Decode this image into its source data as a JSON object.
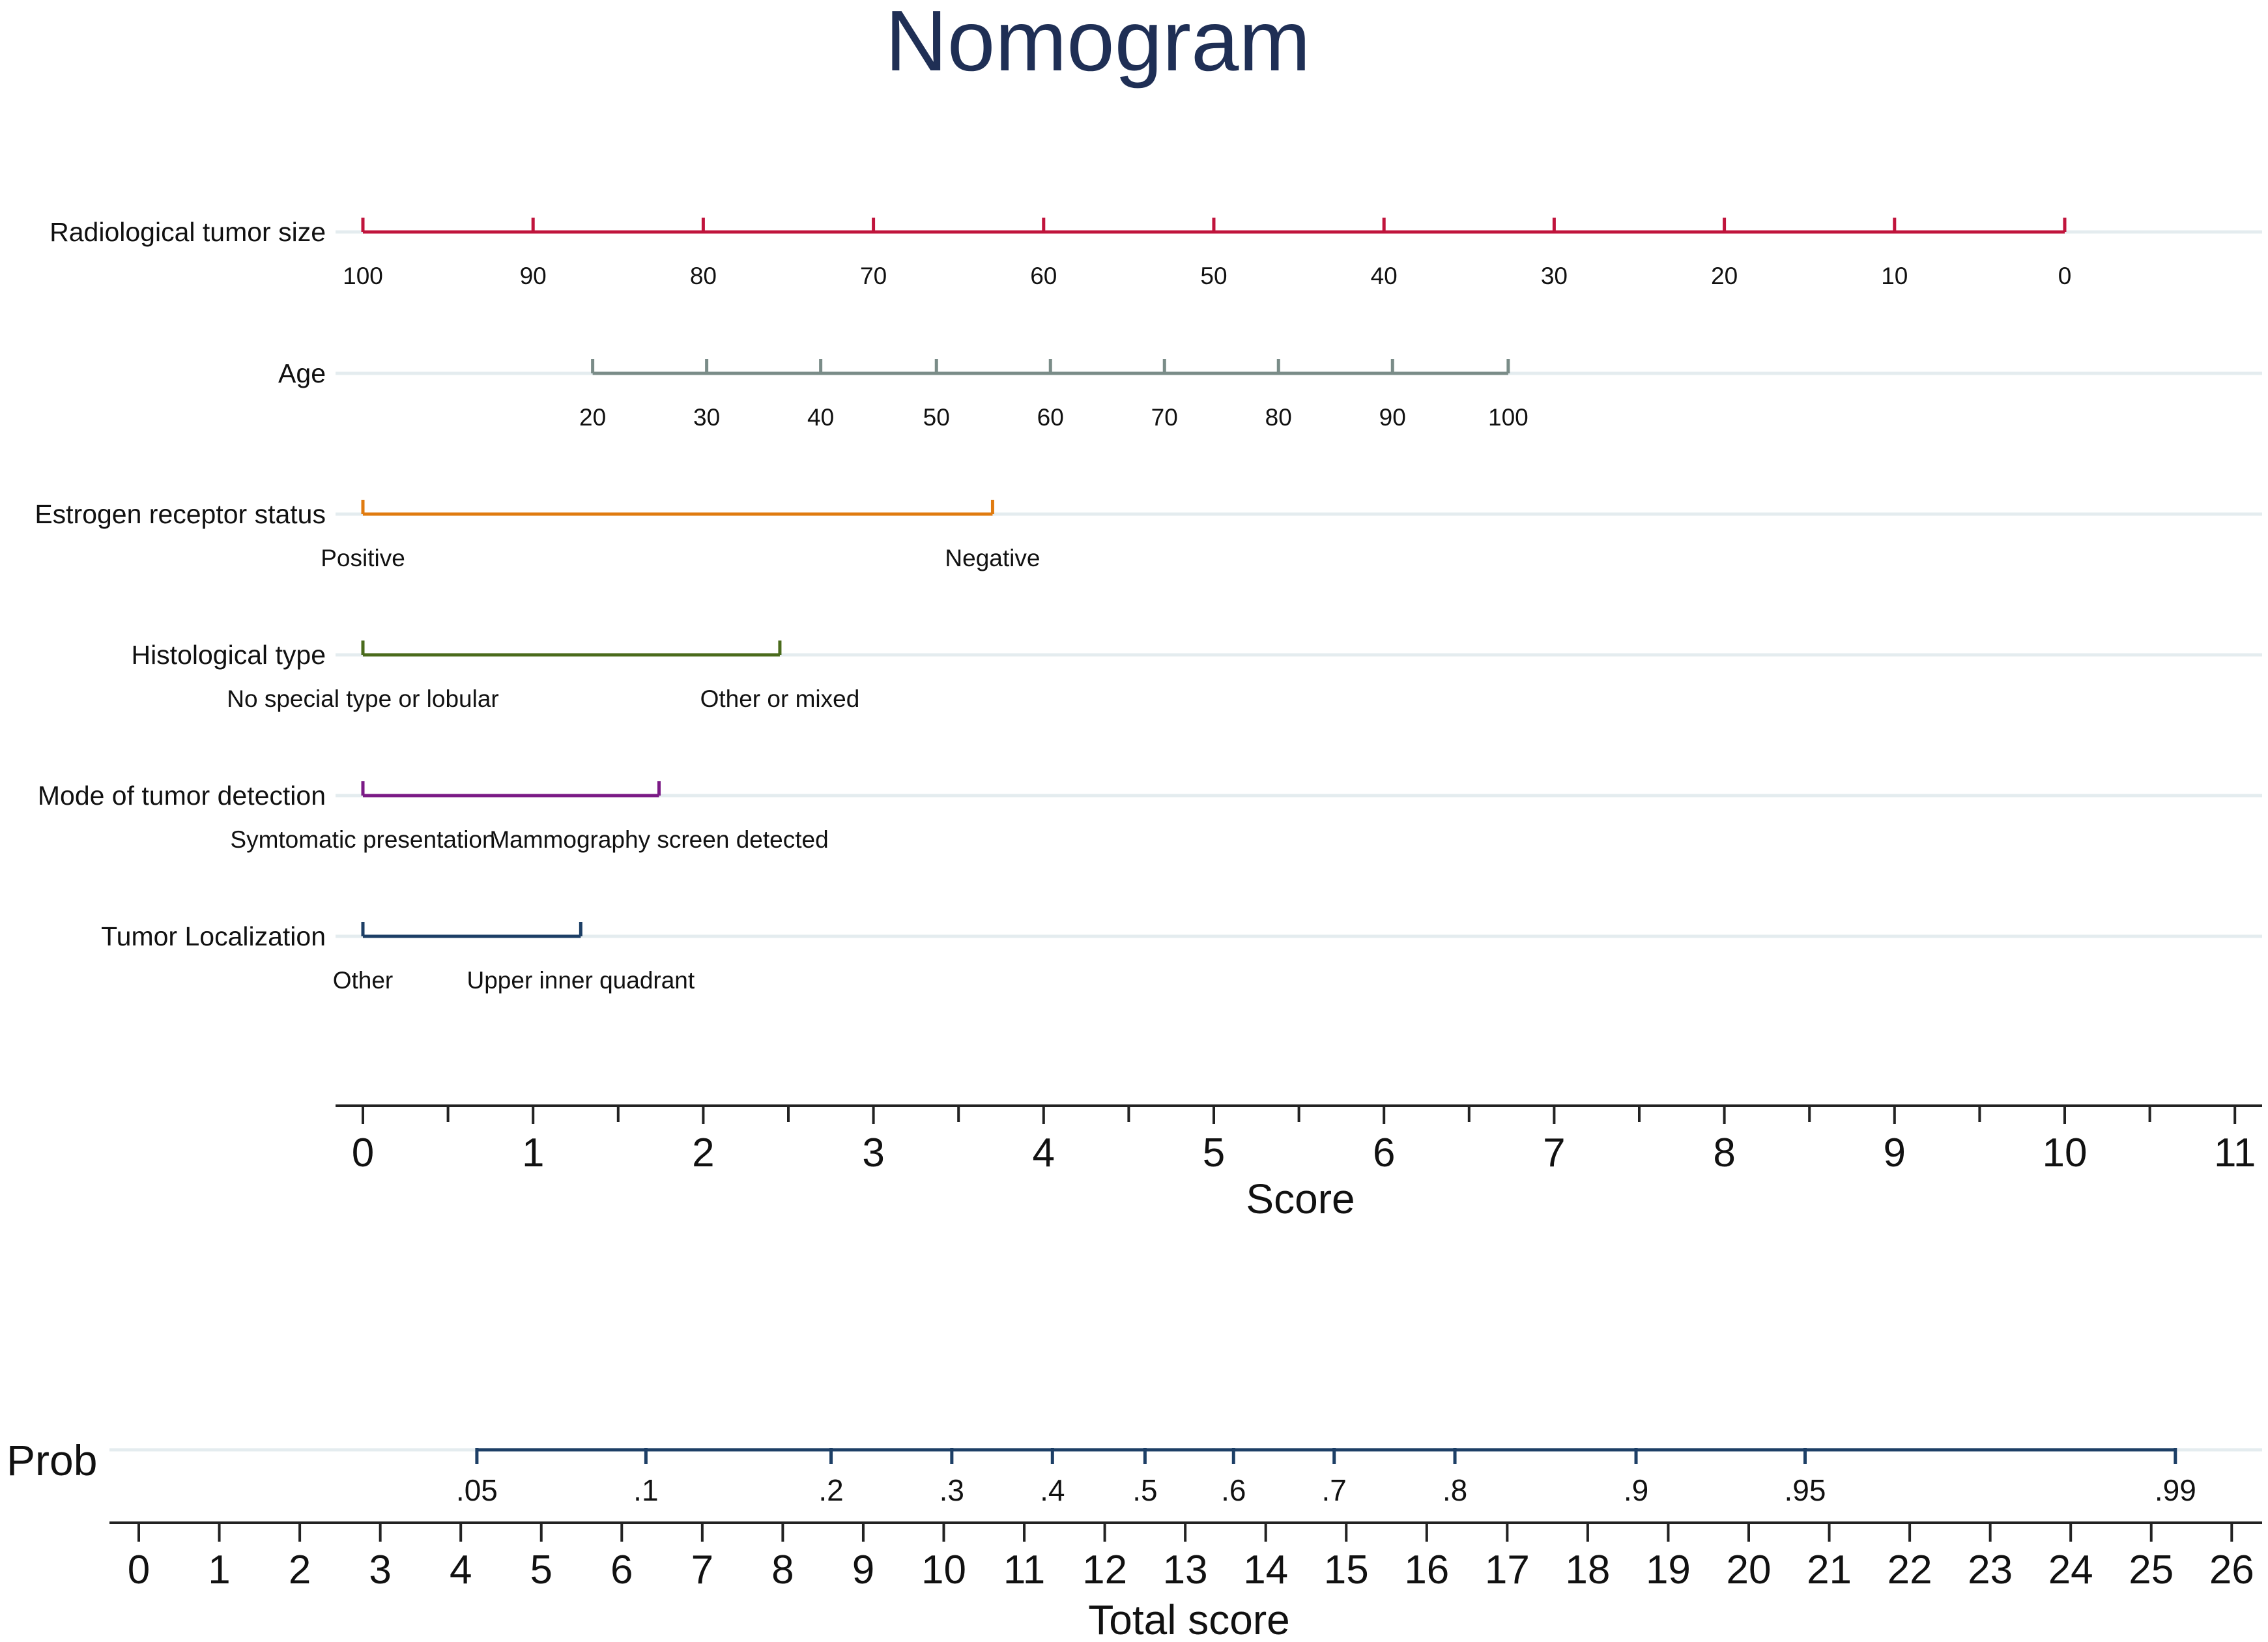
{
  "chart_data": {
    "type": "nomogram",
    "title": "Nomogram",
    "predictors": [
      {
        "name": "Radiological tumor size",
        "color": "#c0143c",
        "ticks": [
          {
            "label": "100",
            "points": 0
          },
          {
            "label": "90",
            "points": 1
          },
          {
            "label": "80",
            "points": 2
          },
          {
            "label": "70",
            "points": 3
          },
          {
            "label": "60",
            "points": 4
          },
          {
            "label": "50",
            "points": 5
          },
          {
            "label": "40",
            "points": 6
          },
          {
            "label": "30",
            "points": 7
          },
          {
            "label": "20",
            "points": 8
          },
          {
            "label": "10",
            "points": 9
          },
          {
            "label": "0",
            "points": 10
          }
        ]
      },
      {
        "name": "Age",
        "color": "#7a8c88",
        "ticks": [
          {
            "label": "20",
            "points": 1.35
          },
          {
            "label": "30",
            "points": 2.02
          },
          {
            "label": "40",
            "points": 2.69
          },
          {
            "label": "50",
            "points": 3.37
          },
          {
            "label": "60",
            "points": 4.04
          },
          {
            "label": "70",
            "points": 4.71
          },
          {
            "label": "80",
            "points": 5.38
          },
          {
            "label": "90",
            "points": 6.05
          },
          {
            "label": "100",
            "points": 6.73
          }
        ]
      },
      {
        "name": "Estrogen receptor status",
        "color": "#e07b10",
        "ticks": [
          {
            "label": "Positive",
            "points": 0
          },
          {
            "label": "Negative",
            "points": 3.7
          }
        ]
      },
      {
        "name": "Histological type",
        "color": "#4a6b1c",
        "ticks": [
          {
            "label": "No special type or lobular",
            "points": 0
          },
          {
            "label": "Other or mixed",
            "points": 2.45
          }
        ]
      },
      {
        "name": "Mode of tumor detection",
        "color": "#7b1a86",
        "ticks": [
          {
            "label": "Symtomatic presentation",
            "points": 0
          },
          {
            "label": "Mammography screen detected",
            "points": 1.74
          }
        ]
      },
      {
        "name": "Tumor Localization",
        "color": "#1d3f66",
        "ticks": [
          {
            "label": "Other",
            "points": 0
          },
          {
            "label": "Upper inner quadrant",
            "points": 1.28
          }
        ]
      }
    ],
    "score_axis": {
      "label": "Score",
      "range": [
        0,
        11
      ],
      "major_ticks": [
        "0",
        "1",
        "2",
        "3",
        "4",
        "5",
        "6",
        "7",
        "8",
        "9",
        "10",
        "11"
      ]
    },
    "probability": {
      "label": "Prob",
      "color": "#1d3f66",
      "ticks": [
        {
          "label": ".05",
          "total": 4.2
        },
        {
          "label": ".1",
          "total": 6.3
        },
        {
          "label": ".2",
          "total": 8.6
        },
        {
          "label": ".3",
          "total": 10.1
        },
        {
          "label": ".4",
          "total": 11.35
        },
        {
          "label": ".5",
          "total": 12.5
        },
        {
          "label": ".6",
          "total": 13.6
        },
        {
          "label": ".7",
          "total": 14.85
        },
        {
          "label": ".8",
          "total": 16.35
        },
        {
          "label": ".9",
          "total": 18.6
        },
        {
          "label": ".95",
          "total": 20.7
        },
        {
          "label": ".99",
          "total": 25.3
        }
      ]
    },
    "total_score_axis": {
      "label": "Total score",
      "range": [
        0,
        26
      ],
      "major_ticks": [
        "0",
        "1",
        "2",
        "3",
        "4",
        "5",
        "6",
        "7",
        "8",
        "9",
        "10",
        "11",
        "12",
        "13",
        "14",
        "15",
        "16",
        "17",
        "18",
        "19",
        "20",
        "21",
        "22",
        "23",
        "24",
        "25",
        "26"
      ]
    }
  }
}
